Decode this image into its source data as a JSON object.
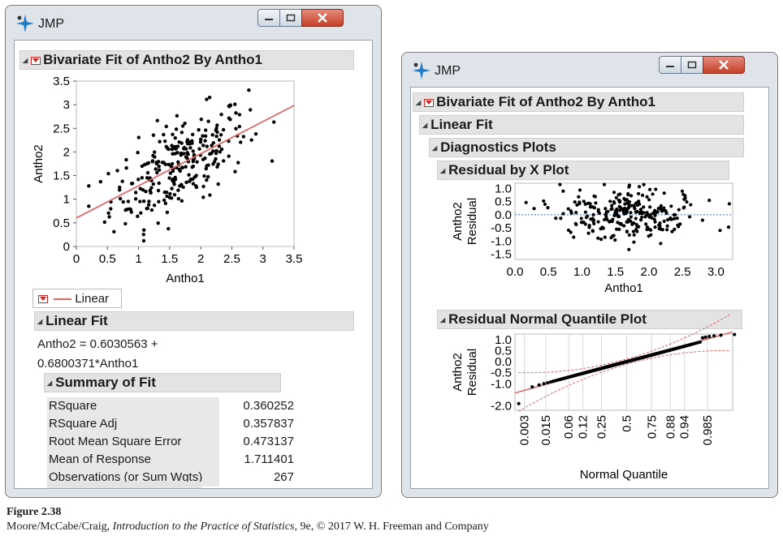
{
  "left_window": {
    "app_title": "JMP",
    "report_title": "Bivariate Fit of Antho2 By Antho1",
    "scatter": {
      "x_label": "Antho1",
      "y_label": "Antho2",
      "x_ticks": [
        "0",
        "0.5",
        "1",
        "1.5",
        "2",
        "2.5",
        "3",
        "3.5"
      ],
      "y_ticks": [
        "0",
        "0.5",
        "1",
        "1.5",
        "2",
        "2.5",
        "3",
        "3.5"
      ],
      "fit_line": {
        "intercept": 0.6030563,
        "slope": 0.6800371,
        "color": "#e06666"
      }
    },
    "legend_label": "Linear Fit",
    "linear_fit_header": "Linear Fit",
    "equation_line1": "Antho2 = 0.6030563 +",
    "equation_line2": "0.6800371*Antho1",
    "summary_header": "Summary of Fit",
    "summary": [
      {
        "label": "RSquare",
        "value": "0.360252"
      },
      {
        "label": "RSquare Adj",
        "value": "0.357837"
      },
      {
        "label": "Root Mean Square Error",
        "value": "0.473137"
      },
      {
        "label": "Mean of Response",
        "value": "1.711401"
      },
      {
        "label": "Observations (or Sum Wgts)",
        "value": "267"
      }
    ]
  },
  "right_window": {
    "app_title": "JMP",
    "report_title": "Bivariate Fit of Antho2 By Antho1",
    "linear_fit_header": "Linear Fit",
    "diagnostics_header": "Diagnostics Plots",
    "residual_x_header": "Residual by X Plot",
    "residual_x": {
      "x_label": "Antho1",
      "y_label_line1": "Antho2",
      "y_label_line2": "Residual",
      "x_ticks": [
        "0.0",
        "0.5",
        "1.0",
        "1.5",
        "2.0",
        "2.5",
        "3.0"
      ],
      "y_ticks": [
        "1.0",
        "0.5",
        "0.0",
        "-0.5",
        "-1.0",
        "-1.5"
      ]
    },
    "normal_quantile_header": "Residual Normal Quantile Plot",
    "normal_quantile": {
      "x_label": "Normal Quantile",
      "y_label_line1": "Antho2",
      "y_label_line2": "Residual",
      "x_ticks": [
        "0.003",
        "0.015",
        "0.06",
        "0.12",
        "0.25",
        "0.5",
        "0.75",
        "0.88",
        "0.94",
        "0.985"
      ],
      "y_ticks": [
        "1.0",
        "0.5",
        "0.0",
        "-0.5",
        "-1.0",
        "-2.0"
      ]
    }
  },
  "caption": {
    "figure": "Figure 2.38",
    "authors": "Moore/McCabe/Craig, ",
    "book": "Introduction to the Practice of Statistics",
    "rest": ", 9e, © 2017 W. H. Freeman and Company"
  },
  "colors": {
    "fit_line": "#e06666",
    "accent_red": "#c62828",
    "zero_line": "#3b6fd1"
  },
  "icons": {
    "logo": "jmp-star-logo-icon",
    "disclosure": "disclosure-triangle-icon",
    "menu": "red-triangle-menu-icon"
  }
}
